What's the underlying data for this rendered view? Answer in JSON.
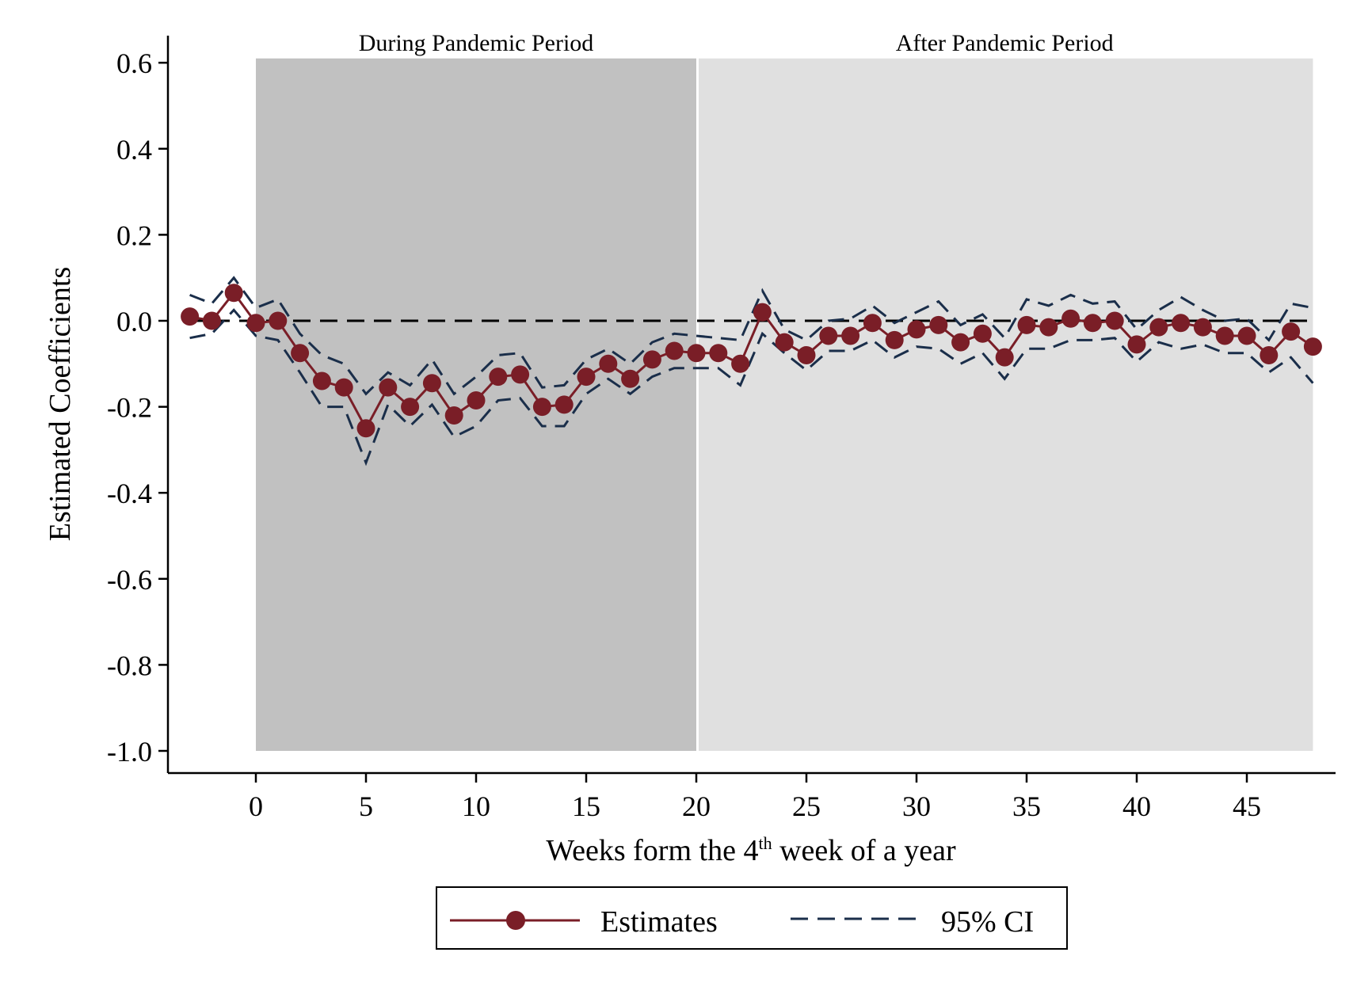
{
  "chart_data": {
    "type": "line",
    "title": "",
    "xlabel_parts": {
      "pre": "Weeks form the 4",
      "sup": "th",
      "post": " week of a year"
    },
    "ylabel": "Estimated Coefficients",
    "xlim": [
      -3.5,
      49
    ],
    "ylim": [
      -1.05,
      0.67
    ],
    "x_ticks": [
      0,
      5,
      10,
      15,
      20,
      25,
      30,
      35,
      40,
      45
    ],
    "x_tick_labels": [
      "0",
      "5",
      "10",
      "15",
      "20",
      "25",
      "30",
      "35",
      "40",
      "45"
    ],
    "y_ticks": [
      0.6,
      0.4,
      0.2,
      0.0,
      -0.2,
      -0.4,
      -0.6,
      -0.8,
      -1.0
    ],
    "y_tick_labels": [
      "0.6",
      "0.4",
      "0.2",
      "0.0",
      "-0.2",
      "-0.4",
      "-0.6",
      "-0.8",
      "-1.0"
    ],
    "reference_line": {
      "y": 0,
      "style": "dashed",
      "color": "#000000"
    },
    "regions": [
      {
        "label": "During Pandemic Period",
        "x_start": 0,
        "x_end": 20,
        "y_start": -1.0,
        "y_end": 0.61,
        "color": "#c1c1c1"
      },
      {
        "label": "After Pandemic Period",
        "x_start": 20,
        "x_end": 48,
        "y_start": -1.0,
        "y_end": 0.61,
        "color": "#e0e0e0"
      }
    ],
    "x": [
      -3,
      -2,
      -1,
      0,
      1,
      2,
      3,
      4,
      5,
      6,
      7,
      8,
      9,
      10,
      11,
      12,
      13,
      14,
      15,
      16,
      17,
      18,
      19,
      20,
      21,
      22,
      23,
      24,
      25,
      26,
      27,
      28,
      29,
      30,
      31,
      32,
      33,
      34,
      35,
      36,
      37,
      38,
      39,
      40,
      41,
      42,
      43,
      44,
      45,
      46,
      47,
      48
    ],
    "series": [
      {
        "name": "Estimates",
        "color": "#7a1e27",
        "style": "solid-with-markers",
        "values": [
          0.01,
          0.0,
          0.065,
          -0.005,
          0.0,
          -0.075,
          -0.14,
          -0.155,
          -0.25,
          -0.155,
          -0.2,
          -0.145,
          -0.22,
          -0.185,
          -0.13,
          -0.125,
          -0.2,
          -0.195,
          -0.13,
          -0.1,
          -0.135,
          -0.09,
          -0.07,
          -0.075,
          -0.075,
          -0.1,
          0.02,
          -0.05,
          -0.08,
          -0.035,
          -0.035,
          -0.005,
          -0.045,
          -0.02,
          -0.01,
          -0.05,
          -0.03,
          -0.085,
          -0.01,
          -0.015,
          0.005,
          -0.005,
          0.0,
          -0.055,
          -0.015,
          -0.005,
          -0.015,
          -0.035,
          -0.035,
          -0.08,
          -0.025,
          -0.06
        ]
      },
      {
        "name": "95% CI",
        "color": "#1a2e4a",
        "style": "dashed",
        "upper": [
          0.06,
          0.04,
          0.1,
          0.03,
          0.05,
          -0.03,
          -0.08,
          -0.1,
          -0.17,
          -0.12,
          -0.15,
          -0.09,
          -0.17,
          -0.13,
          -0.08,
          -0.075,
          -0.155,
          -0.15,
          -0.09,
          -0.065,
          -0.1,
          -0.05,
          -0.03,
          -0.035,
          -0.04,
          -0.045,
          0.07,
          -0.02,
          -0.045,
          0.0,
          0.005,
          0.035,
          -0.005,
          0.02,
          0.045,
          -0.01,
          0.015,
          -0.04,
          0.05,
          0.035,
          0.06,
          0.04,
          0.045,
          -0.02,
          0.025,
          0.055,
          0.025,
          0.0,
          0.005,
          -0.045,
          0.04,
          0.03
        ],
        "lower": [
          -0.04,
          -0.03,
          0.025,
          -0.035,
          -0.045,
          -0.12,
          -0.2,
          -0.2,
          -0.33,
          -0.195,
          -0.245,
          -0.195,
          -0.27,
          -0.245,
          -0.185,
          -0.18,
          -0.245,
          -0.245,
          -0.17,
          -0.135,
          -0.17,
          -0.13,
          -0.11,
          -0.11,
          -0.11,
          -0.15,
          -0.03,
          -0.075,
          -0.115,
          -0.07,
          -0.07,
          -0.045,
          -0.085,
          -0.06,
          -0.065,
          -0.1,
          -0.075,
          -0.135,
          -0.065,
          -0.065,
          -0.045,
          -0.045,
          -0.04,
          -0.095,
          -0.05,
          -0.065,
          -0.055,
          -0.075,
          -0.075,
          -0.12,
          -0.085,
          -0.145
        ]
      }
    ],
    "legend": {
      "placement": "bottom-center",
      "entries": [
        "Estimates",
        "95% CI"
      ]
    }
  }
}
